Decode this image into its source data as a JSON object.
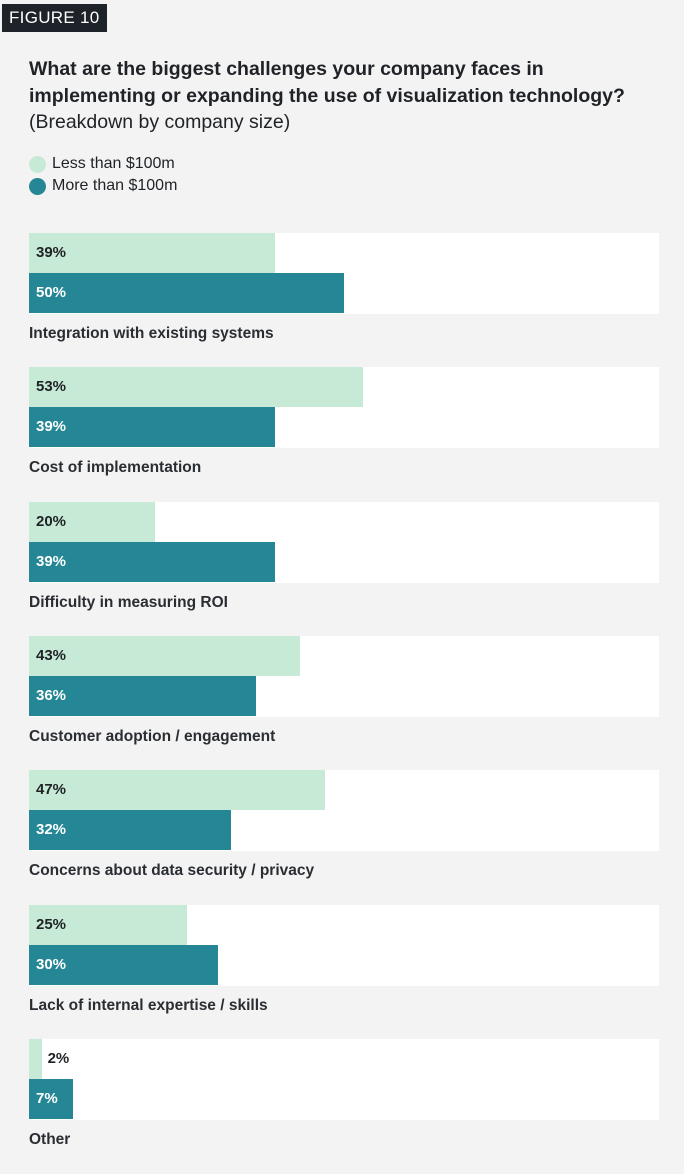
{
  "figure_label": "FIGURE 10",
  "chart_data": {
    "type": "bar",
    "orientation": "horizontal",
    "title": "What are the biggest challenges your company faces in implementing or expanding the use of visualization technology?",
    "subtitle": "(Breakdown by company size)",
    "categories": [
      "Integration with existing systems",
      "Cost of implementation",
      "Difficulty in measuring ROI",
      "Customer adoption / engagement",
      "Concerns about data security / privacy",
      "Lack of internal expertise / skills",
      "Other"
    ],
    "series": [
      {
        "name": "Less than $100m",
        "color": "#c7ead7",
        "values": [
          39,
          53,
          20,
          43,
          47,
          25,
          2
        ]
      },
      {
        "name": "More than $100m",
        "color": "#258795",
        "values": [
          50,
          39,
          39,
          36,
          32,
          30,
          7
        ]
      }
    ],
    "value_suffix": "%",
    "xlim": [
      0,
      100
    ],
    "legend_position": "top-left",
    "grid": false
  }
}
